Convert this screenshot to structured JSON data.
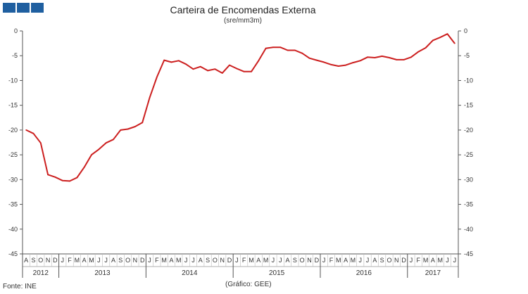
{
  "brand": {
    "color": "#1f5fa0",
    "logo": "three-square-logo"
  },
  "source_label": "Fonte:  INE",
  "credit_label": "(Gráfico:  GEE)",
  "chart_data": {
    "type": "line",
    "title": "Carteira de Encomendas  Externa",
    "subtitle": "(sre/mm3m)",
    "ylim": [
      -45,
      0
    ],
    "yticks": [
      0,
      -5,
      -10,
      -15,
      -20,
      -25,
      -30,
      -35,
      -40,
      -45
    ],
    "grid": false,
    "line_color": "#cc1f1f",
    "month_letters": [
      "A",
      "S",
      "O",
      "N",
      "D",
      "J",
      "F",
      "M",
      "A",
      "M",
      "J",
      "J",
      "A",
      "S",
      "O",
      "N",
      "D",
      "J",
      "F",
      "M",
      "A",
      "M",
      "J",
      "J",
      "A",
      "S",
      "O",
      "N",
      "D",
      "J",
      "F",
      "M",
      "A",
      "M",
      "J",
      "J",
      "A",
      "S",
      "O",
      "N",
      "D",
      "J",
      "F",
      "M",
      "A",
      "M",
      "J",
      "J",
      "A",
      "S",
      "O",
      "N",
      "D",
      "J",
      "F",
      "M",
      "A",
      "M",
      "J",
      "J"
    ],
    "years": [
      {
        "label": "2012",
        "start": 0,
        "count": 5
      },
      {
        "label": "2013",
        "start": 5,
        "count": 12
      },
      {
        "label": "2014",
        "start": 17,
        "count": 12
      },
      {
        "label": "2015",
        "start": 29,
        "count": 12
      },
      {
        "label": "2016",
        "start": 41,
        "count": 12
      },
      {
        "label": "2017",
        "start": 53,
        "count": 7
      }
    ],
    "x": [
      "2012-08",
      "2012-09",
      "2012-10",
      "2012-11",
      "2012-12",
      "2013-01",
      "2013-02",
      "2013-03",
      "2013-04",
      "2013-05",
      "2013-06",
      "2013-07",
      "2013-08",
      "2013-09",
      "2013-10",
      "2013-11",
      "2013-12",
      "2014-01",
      "2014-02",
      "2014-03",
      "2014-04",
      "2014-05",
      "2014-06",
      "2014-07",
      "2014-08",
      "2014-09",
      "2014-10",
      "2014-11",
      "2014-12",
      "2015-01",
      "2015-02",
      "2015-03",
      "2015-04",
      "2015-05",
      "2015-06",
      "2015-07",
      "2015-08",
      "2015-09",
      "2015-10",
      "2015-11",
      "2015-12",
      "2016-01",
      "2016-02",
      "2016-03",
      "2016-04",
      "2016-05",
      "2016-06",
      "2016-07",
      "2016-08",
      "2016-09",
      "2016-10",
      "2016-11",
      "2016-12",
      "2017-01",
      "2017-02",
      "2017-03",
      "2017-04",
      "2017-05",
      "2017-06",
      "2017-07"
    ],
    "series": [
      {
        "values": [
          -20.0,
          -20.7,
          -22.6,
          -29.0,
          -29.5,
          -30.2,
          -30.3,
          -29.6,
          -27.5,
          -25.0,
          -23.9,
          -22.6,
          -21.9,
          -20.0,
          -19.8,
          -19.3,
          -18.5,
          -13.5,
          -9.3,
          -5.9,
          -6.3,
          -6.0,
          -6.7,
          -7.7,
          -7.2,
          -8.0,
          -7.7,
          -8.5,
          -6.9,
          -7.6,
          -8.2,
          -8.2,
          -6.0,
          -3.5,
          -3.3,
          -3.3,
          -3.9,
          -3.9,
          -4.5,
          -5.5,
          -5.9,
          -6.3,
          -6.8,
          -7.1,
          -6.9,
          -6.4,
          -6.0,
          -5.3,
          -5.4,
          -5.1,
          -5.4,
          -5.8,
          -5.8,
          -5.3,
          -4.2,
          -3.4,
          -1.9,
          -1.3,
          -0.6,
          -2.5
        ]
      }
    ]
  }
}
